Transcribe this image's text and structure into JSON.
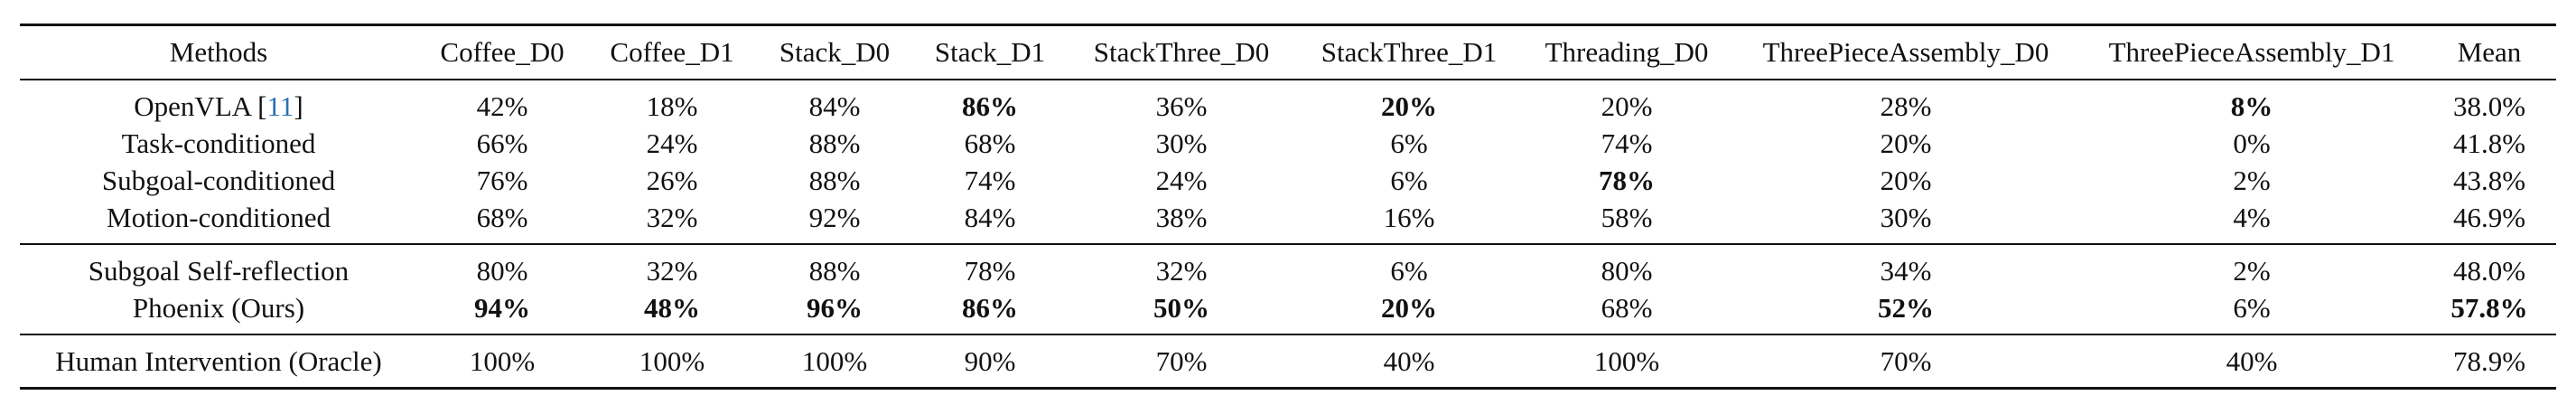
{
  "table": {
    "headers": [
      "Methods",
      "Coffee_D0",
      "Coffee_D1",
      "Stack_D0",
      "Stack_D1",
      "StackThree_D0",
      "StackThree_D1",
      "Threading_D0",
      "ThreePieceAssembly_D0",
      "ThreePieceAssembly_D1",
      "Mean"
    ],
    "groups": [
      {
        "rows": [
          {
            "method": "OpenVLA [",
            "ref": "11",
            "ref_close": "]",
            "values": [
              "42%",
              "18%",
              "84%",
              "86%",
              "36%",
              "20%",
              "20%",
              "28%",
              "8%",
              "38.0%"
            ],
            "bold": [
              false,
              false,
              false,
              true,
              false,
              true,
              false,
              false,
              true,
              false
            ]
          },
          {
            "method": "Task-conditioned",
            "values": [
              "66%",
              "24%",
              "88%",
              "68%",
              "30%",
              "6%",
              "74%",
              "20%",
              "0%",
              "41.8%"
            ],
            "bold": [
              false,
              false,
              false,
              false,
              false,
              false,
              false,
              false,
              false,
              false
            ]
          },
          {
            "method": "Subgoal-conditioned",
            "values": [
              "76%",
              "26%",
              "88%",
              "74%",
              "24%",
              "6%",
              "78%",
              "20%",
              "2%",
              "43.8%"
            ],
            "bold": [
              false,
              false,
              false,
              false,
              false,
              false,
              true,
              false,
              false,
              false
            ]
          },
          {
            "method": "Motion-conditioned",
            "values": [
              "68%",
              "32%",
              "92%",
              "84%",
              "38%",
              "16%",
              "58%",
              "30%",
              "4%",
              "46.9%"
            ],
            "bold": [
              false,
              false,
              false,
              false,
              false,
              false,
              false,
              false,
              false,
              false
            ]
          }
        ]
      },
      {
        "rows": [
          {
            "method": "Subgoal Self-reflection",
            "values": [
              "80%",
              "32%",
              "88%",
              "78%",
              "32%",
              "6%",
              "80%",
              "34%",
              "2%",
              "48.0%"
            ],
            "bold": [
              false,
              false,
              false,
              false,
              false,
              false,
              false,
              false,
              false,
              false
            ]
          },
          {
            "method": "Phoenix (Ours)",
            "values": [
              "94%",
              "48%",
              "96%",
              "86%",
              "50%",
              "20%",
              "68%",
              "52%",
              "6%",
              "57.8%"
            ],
            "bold": [
              true,
              true,
              true,
              true,
              true,
              true,
              false,
              true,
              false,
              true
            ]
          }
        ]
      },
      {
        "rows": [
          {
            "method": "Human Intervention (Oracle)",
            "values": [
              "100%",
              "100%",
              "100%",
              "90%",
              "70%",
              "40%",
              "100%",
              "70%",
              "40%",
              "78.9%"
            ],
            "bold": [
              false,
              false,
              false,
              false,
              false,
              false,
              false,
              false,
              false,
              false
            ]
          }
        ]
      }
    ]
  }
}
